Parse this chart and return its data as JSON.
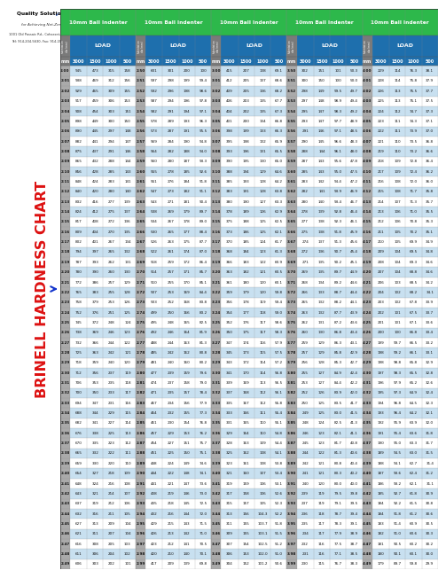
{
  "title": "BRINELL HARDNESS CHART",
  "background_color": "#ffffff",
  "green_bg": "#2db84b",
  "blue_bg": "#1e6fad",
  "gray_col": "#8a8a8a",
  "row_alt1": "#c8e0f0",
  "row_alt2": "#ffffff",
  "ball_headers": [
    "10mm Ball Indenter",
    "10mm Ball Indenter",
    "10mm Ball Indenter",
    "10mm Ball Indenter",
    "10mm Ball Indenter"
  ],
  "load_label": "LOAD",
  "sub_labels": [
    "mm",
    "3000",
    "1500",
    "1000",
    "500"
  ],
  "company_name": "Quality Solutions",
  "company_logo_color": "#003399",
  "company_tagline": "for Achieving Net-Zero",
  "company_address": "1001 Old Passaic Rd., Cohasset, NJ 07838",
  "company_phone": "Tel: 914-204-5630, Fax: 914-206-5383",
  "title_color": "#dd1111",
  "arrow_color": "#1133cc",
  "n_groups": 5,
  "cols_per_group": 5,
  "col_ratios": [
    0.13,
    0.225,
    0.215,
    0.215,
    0.215
  ],
  "data_rows": [
    [
      "2.00",
      "945",
      "473",
      "315",
      "158",
      "2.50",
      "601",
      "301",
      "200",
      "100",
      "3.00",
      "415",
      "207",
      "138",
      "69.1",
      "3.50",
      "302",
      "151",
      "101",
      "50.3",
      "4.00",
      "229",
      "114",
      "76.3",
      "38.1"
    ],
    [
      "2.01",
      "938",
      "469",
      "312",
      "156",
      "2.51",
      "597",
      "298",
      "199",
      "99.4",
      "3.01",
      "412",
      "205",
      "137",
      "68.6",
      "3.51",
      "300",
      "150",
      "100",
      "50.0",
      "4.01",
      "228",
      "114",
      "75.8",
      "37.9"
    ],
    [
      "2.02",
      "929",
      "465",
      "309",
      "155",
      "2.52",
      "592",
      "296",
      "198",
      "98.6",
      "3.02",
      "409",
      "205",
      "136",
      "68.2",
      "3.52",
      "298",
      "149",
      "99.5",
      "49.7",
      "4.02",
      "226",
      "113",
      "75.5",
      "37.7"
    ],
    [
      "2.03",
      "917",
      "459",
      "306",
      "153",
      "2.53",
      "587",
      "294",
      "196",
      "97.8",
      "3.03",
      "406",
      "203",
      "135",
      "67.7",
      "3.53",
      "297",
      "148",
      "98.9",
      "49.4",
      "4.03",
      "225",
      "113",
      "75.1",
      "37.5"
    ],
    [
      "2.04",
      "908",
      "454",
      "303",
      "151",
      "2.54",
      "582",
      "291",
      "194",
      "97.1",
      "3.04",
      "404",
      "202",
      "135",
      "67.3",
      "3.54",
      "295",
      "147",
      "98.3",
      "49.2",
      "4.04",
      "224",
      "112",
      "74.7",
      "37.3"
    ],
    [
      "2.05",
      "898",
      "449",
      "300",
      "150",
      "2.55",
      "578",
      "289",
      "193",
      "96.3",
      "3.05",
      "401",
      "200",
      "134",
      "66.8",
      "3.55",
      "293",
      "147",
      "97.7",
      "48.9",
      "4.05",
      "223",
      "111",
      "74.3",
      "37.1"
    ],
    [
      "2.06",
      "890",
      "445",
      "297",
      "148",
      "2.56",
      "573",
      "287",
      "191",
      "95.5",
      "3.06",
      "398",
      "199",
      "133",
      "66.3",
      "3.56",
      "291",
      "146",
      "97.1",
      "48.5",
      "4.06",
      "222",
      "111",
      "73.9",
      "37.0"
    ],
    [
      "2.07",
      "882",
      "441",
      "294",
      "147",
      "2.57",
      "569",
      "284",
      "190",
      "94.8",
      "3.07",
      "395",
      "198",
      "132",
      "65.9",
      "3.57",
      "290",
      "145",
      "96.6",
      "48.3",
      "4.07",
      "221",
      "110",
      "73.5",
      "36.8"
    ],
    [
      "2.08",
      "875",
      "437",
      "291",
      "146",
      "2.58",
      "564",
      "282",
      "188",
      "94.0",
      "3.08",
      "393",
      "196",
      "131",
      "65.5",
      "3.58",
      "288",
      "144",
      "96.1",
      "48.0",
      "4.08",
      "219",
      "110",
      "73.2",
      "36.6"
    ],
    [
      "2.09",
      "865",
      "432",
      "288",
      "144",
      "2.59",
      "560",
      "280",
      "187",
      "93.3",
      "3.09",
      "390",
      "195",
      "130",
      "65.0",
      "3.59",
      "287",
      "143",
      "95.6",
      "47.8",
      "4.09",
      "218",
      "109",
      "72.8",
      "36.4"
    ],
    [
      "2.10",
      "856",
      "428",
      "285",
      "143",
      "2.60",
      "555",
      "278",
      "185",
      "92.6",
      "3.10",
      "388",
      "194",
      "129",
      "64.6",
      "3.60",
      "285",
      "143",
      "95.0",
      "47.5",
      "4.10",
      "217",
      "109",
      "72.4",
      "36.2"
    ],
    [
      "2.11",
      "848",
      "424",
      "283",
      "141",
      "2.61",
      "551",
      "276",
      "184",
      "91.8",
      "3.11",
      "385",
      "193",
      "128",
      "64.2",
      "3.61",
      "283",
      "142",
      "94.4",
      "47.2",
      "4.11",
      "216",
      "108",
      "72.0",
      "36.0"
    ],
    [
      "2.12",
      "840",
      "420",
      "280",
      "140",
      "2.62",
      "547",
      "273",
      "182",
      "91.1",
      "3.12",
      "383",
      "191",
      "128",
      "63.8",
      "3.62",
      "282",
      "141",
      "93.9",
      "46.9",
      "4.12",
      "215",
      "108",
      "71.7",
      "35.8"
    ],
    [
      "2.13",
      "832",
      "416",
      "277",
      "139",
      "2.63",
      "543",
      "271",
      "181",
      "90.4",
      "3.13",
      "380",
      "190",
      "127",
      "63.3",
      "3.63",
      "280",
      "140",
      "93.4",
      "46.7",
      "4.13",
      "214",
      "107",
      "71.3",
      "35.7"
    ],
    [
      "2.14",
      "824",
      "412",
      "275",
      "137",
      "2.64",
      "538",
      "269",
      "179",
      "89.7",
      "3.14",
      "378",
      "189",
      "126",
      "62.9",
      "3.64",
      "278",
      "139",
      "92.8",
      "46.4",
      "4.14",
      "213",
      "106",
      "71.0",
      "35.5"
    ],
    [
      "2.15",
      "817",
      "408",
      "272",
      "136",
      "2.65",
      "534",
      "267",
      "178",
      "89.0",
      "3.15",
      "375",
      "188",
      "125",
      "62.5",
      "3.65",
      "277",
      "138",
      "92.3",
      "46.1",
      "4.15",
      "212",
      "106",
      "70.8",
      "35.3"
    ],
    [
      "2.16",
      "809",
      "404",
      "270",
      "135",
      "2.66",
      "530",
      "265",
      "177",
      "88.4",
      "3.16",
      "373",
      "186",
      "125",
      "62.1",
      "3.66",
      "275",
      "138",
      "91.8",
      "45.9",
      "4.16",
      "211",
      "105",
      "70.2",
      "35.1"
    ],
    [
      "2.17",
      "802",
      "401",
      "267",
      "134",
      "2.67",
      "526",
      "263",
      "175",
      "87.7",
      "3.17",
      "370",
      "185",
      "124",
      "61.7",
      "3.67",
      "274",
      "137",
      "91.3",
      "45.6",
      "4.17",
      "210",
      "105",
      "69.9",
      "34.9"
    ],
    [
      "2.18",
      "794",
      "397",
      "265",
      "132",
      "2.68",
      "522",
      "261",
      "174",
      "87.0",
      "3.18",
      "368",
      "184",
      "123",
      "61.3",
      "3.68",
      "272",
      "136",
      "90.7",
      "45.4",
      "4.18",
      "209",
      "104",
      "69.5",
      "34.8"
    ],
    [
      "2.19",
      "787",
      "393",
      "262",
      "131",
      "2.69",
      "518",
      "259",
      "172",
      "86.4",
      "3.19",
      "366",
      "183",
      "122",
      "60.9",
      "3.69",
      "271",
      "135",
      "90.2",
      "45.1",
      "4.19",
      "208",
      "104",
      "69.3",
      "34.6"
    ],
    [
      "2.20",
      "780",
      "390",
      "260",
      "130",
      "2.70",
      "514",
      "257",
      "171",
      "85.7",
      "3.20",
      "363",
      "182",
      "121",
      "60.5",
      "3.70",
      "269",
      "135",
      "89.7",
      "44.9",
      "4.20",
      "207",
      "104",
      "68.8",
      "34.6"
    ],
    [
      "2.21",
      "772",
      "386",
      "257",
      "129",
      "2.71",
      "510",
      "255",
      "170",
      "85.1",
      "3.21",
      "361",
      "180",
      "120",
      "60.1",
      "3.71",
      "268",
      "134",
      "89.2",
      "44.6",
      "4.21",
      "206",
      "103",
      "68.5",
      "34.2"
    ],
    [
      "2.22",
      "765",
      "383",
      "255",
      "128",
      "2.72",
      "507",
      "253",
      "169",
      "84.4",
      "3.22",
      "359",
      "179",
      "120",
      "59.8",
      "3.72",
      "266",
      "133",
      "88.7",
      "44.4",
      "4.22",
      "204",
      "102",
      "68.2",
      "34.1"
    ],
    [
      "2.23",
      "758",
      "379",
      "253",
      "126",
      "2.73",
      "503",
      "252",
      "168",
      "83.8",
      "3.23",
      "356",
      "178",
      "119",
      "59.4",
      "3.73",
      "265",
      "132",
      "88.2",
      "44.1",
      "4.23",
      "203",
      "102",
      "67.8",
      "33.9"
    ],
    [
      "2.24",
      "752",
      "376",
      "251",
      "125",
      "2.74",
      "499",
      "250",
      "166",
      "83.2",
      "3.24",
      "354",
      "177",
      "118",
      "59.0",
      "3.74",
      "263",
      "132",
      "87.7",
      "43.9",
      "4.24",
      "202",
      "101",
      "67.5",
      "33.7"
    ],
    [
      "2.25",
      "745",
      "372",
      "248",
      "124",
      "2.75",
      "495",
      "248",
      "165",
      "82.5",
      "3.25",
      "352",
      "176",
      "117",
      "58.6",
      "3.75",
      "262",
      "131",
      "87.2",
      "43.6",
      "4.25",
      "201",
      "101",
      "67.1",
      "33.6"
    ],
    [
      "2.26",
      "738",
      "369",
      "246",
      "123",
      "2.76",
      "492",
      "246",
      "164",
      "81.9",
      "3.26",
      "350",
      "175",
      "117",
      "58.3",
      "3.76",
      "260",
      "130",
      "86.8",
      "43.4",
      "4.26",
      "200",
      "100",
      "66.8",
      "33.4"
    ],
    [
      "2.27",
      "732",
      "366",
      "244",
      "122",
      "2.77",
      "488",
      "244",
      "163",
      "81.3",
      "3.27",
      "347",
      "174",
      "116",
      "57.9",
      "3.77",
      "259",
      "129",
      "86.3",
      "43.1",
      "4.27",
      "199",
      "99.7",
      "66.5",
      "33.2"
    ],
    [
      "2.28",
      "725",
      "363",
      "242",
      "121",
      "2.78",
      "485",
      "242",
      "162",
      "80.8",
      "3.28",
      "345",
      "173",
      "115",
      "57.5",
      "3.78",
      "257",
      "129",
      "85.8",
      "42.9",
      "4.28",
      "198",
      "99.2",
      "66.1",
      "33.1"
    ],
    [
      "2.29",
      "718",
      "359",
      "240",
      "120",
      "2.79",
      "481",
      "240",
      "160",
      "80.2",
      "3.29",
      "343",
      "172",
      "114",
      "57.2",
      "3.79",
      "256",
      "128",
      "85.3",
      "42.7",
      "4.29",
      "198",
      "98.8",
      "65.8",
      "32.9"
    ],
    [
      "2.30",
      "712",
      "356",
      "237",
      "119",
      "2.80",
      "477",
      "239",
      "159",
      "79.6",
      "3.30",
      "341",
      "170",
      "114",
      "56.8",
      "3.80",
      "255",
      "127",
      "84.9",
      "42.4",
      "4.30",
      "197",
      "98.3",
      "65.5",
      "32.8"
    ],
    [
      "2.31",
      "706",
      "353",
      "235",
      "118",
      "2.81",
      "474",
      "237",
      "158",
      "79.0",
      "3.31",
      "339",
      "169",
      "113",
      "56.5",
      "3.81",
      "253",
      "127",
      "84.4",
      "42.2",
      "4.31",
      "196",
      "97.9",
      "65.2",
      "32.6"
    ],
    [
      "2.32",
      "700",
      "350",
      "233",
      "117",
      "2.82",
      "471",
      "235",
      "157",
      "78.4",
      "3.32",
      "337",
      "168",
      "112",
      "56.1",
      "3.82",
      "252",
      "126",
      "83.9",
      "42.0",
      "4.32",
      "195",
      "97.3",
      "64.9",
      "32.4"
    ],
    [
      "2.33",
      "694",
      "347",
      "231",
      "116",
      "2.83",
      "467",
      "234",
      "156",
      "77.9",
      "3.33",
      "335",
      "167",
      "112",
      "55.8",
      "3.83",
      "250",
      "125",
      "83.5",
      "41.7",
      "4.33",
      "194",
      "96.8",
      "64.5",
      "32.3"
    ],
    [
      "2.34",
      "688",
      "344",
      "229",
      "115",
      "2.84",
      "464",
      "232",
      "155",
      "77.3",
      "3.34",
      "333",
      "166",
      "111",
      "55.4",
      "3.84",
      "249",
      "125",
      "83.0",
      "41.5",
      "4.34",
      "193",
      "96.4",
      "64.2",
      "32.1"
    ],
    [
      "2.35",
      "682",
      "341",
      "227",
      "114",
      "2.85",
      "461",
      "230",
      "154",
      "76.8",
      "3.35",
      "331",
      "165",
      "110",
      "55.1",
      "3.85",
      "248",
      "124",
      "82.5",
      "41.3",
      "4.35",
      "192",
      "95.9",
      "63.9",
      "32.0"
    ],
    [
      "2.36",
      "676",
      "338",
      "225",
      "113",
      "2.86",
      "457",
      "229",
      "153",
      "76.2",
      "3.36",
      "329",
      "164",
      "110",
      "54.8",
      "3.86",
      "246",
      "123",
      "82.1",
      "41.1",
      "4.36",
      "191",
      "95.4",
      "63.6",
      "31.8"
    ],
    [
      "2.37",
      "670",
      "335",
      "223",
      "112",
      "2.87",
      "454",
      "227",
      "151",
      "75.7",
      "3.37",
      "328",
      "163",
      "109",
      "54.4",
      "3.87",
      "245",
      "123",
      "81.7",
      "40.8",
      "4.37",
      "190",
      "95.0",
      "63.3",
      "31.7"
    ],
    [
      "2.38",
      "665",
      "332",
      "222",
      "111",
      "2.88",
      "451",
      "225",
      "150",
      "75.1",
      "3.38",
      "325",
      "162",
      "108",
      "54.1",
      "3.88",
      "244",
      "122",
      "81.3",
      "40.6",
      "4.38",
      "189",
      "94.5",
      "63.0",
      "31.5"
    ],
    [
      "2.39",
      "659",
      "330",
      "220",
      "110",
      "2.89",
      "448",
      "224",
      "149",
      "74.6",
      "3.39",
      "323",
      "161",
      "108",
      "53.8",
      "3.89",
      "242",
      "121",
      "80.8",
      "40.4",
      "4.39",
      "188",
      "94.1",
      "62.7",
      "31.4"
    ],
    [
      "2.40",
      "654",
      "327",
      "218",
      "109",
      "2.90",
      "444",
      "222",
      "148",
      "74.1",
      "3.40",
      "321",
      "160",
      "107",
      "53.4",
      "3.90",
      "241",
      "121",
      "80.3",
      "40.2",
      "4.40",
      "187",
      "93.6",
      "62.4",
      "31.2"
    ],
    [
      "2.41",
      "648",
      "324",
      "216",
      "108",
      "2.91",
      "441",
      "221",
      "147",
      "73.6",
      "3.41",
      "319",
      "159",
      "106",
      "53.1",
      "3.91",
      "240",
      "120",
      "80.0",
      "40.0",
      "4.41",
      "186",
      "93.2",
      "62.1",
      "31.1"
    ],
    [
      "2.42",
      "643",
      "321",
      "214",
      "107",
      "2.92",
      "438",
      "219",
      "146",
      "73.0",
      "3.42",
      "317",
      "158",
      "106",
      "52.6",
      "3.92",
      "239",
      "119",
      "79.5",
      "39.8",
      "4.42",
      "185",
      "92.7",
      "61.8",
      "30.9"
    ],
    [
      "2.43",
      "637",
      "319",
      "212",
      "106",
      "2.93",
      "435",
      "218",
      "145",
      "72.5",
      "3.43",
      "315",
      "157",
      "105",
      "52.3",
      "3.93",
      "237",
      "119",
      "79.1",
      "39.5",
      "4.43",
      "184",
      "92.2",
      "61.5",
      "30.8"
    ],
    [
      "2.44",
      "632",
      "316",
      "211",
      "105",
      "2.94",
      "432",
      "216",
      "144",
      "72.0",
      "3.44",
      "313",
      "156",
      "104.3",
      "52.2",
      "3.94",
      "236",
      "118",
      "78.7",
      "39.4",
      "4.44",
      "184",
      "91.8",
      "61.2",
      "30.6"
    ],
    [
      "2.45",
      "627",
      "313",
      "209",
      "104",
      "2.95",
      "429",
      "215",
      "143",
      "71.5",
      "3.45",
      "311",
      "155",
      "103.7",
      "51.8",
      "3.95",
      "235",
      "117",
      "78.3",
      "39.1",
      "4.45",
      "183",
      "91.4",
      "60.9",
      "30.5"
    ],
    [
      "2.46",
      "621",
      "311",
      "207",
      "104",
      "2.96",
      "426",
      "213",
      "142",
      "71.0",
      "3.46",
      "309",
      "155",
      "103.1",
      "51.5",
      "3.96",
      "234",
      "117",
      "77.9",
      "38.9",
      "4.46",
      "182",
      "91.0",
      "60.6",
      "30.3"
    ],
    [
      "2.47",
      "616",
      "308",
      "205",
      "103",
      "2.97",
      "423",
      "212",
      "141",
      "70.5",
      "3.47",
      "307",
      "154",
      "102.5",
      "51.2",
      "3.97",
      "232",
      "116",
      "77.5",
      "38.7",
      "4.47",
      "181",
      "90.5",
      "60.2",
      "30.2"
    ],
    [
      "2.48",
      "611",
      "306",
      "204",
      "102",
      "2.98",
      "420",
      "210",
      "140",
      "70.1",
      "3.48",
      "306",
      "153",
      "102.0",
      "51.0",
      "3.98",
      "231",
      "116",
      "77.1",
      "38.5",
      "4.48",
      "180",
      "90.1",
      "60.1",
      "30.0"
    ],
    [
      "2.49",
      "606",
      "303",
      "202",
      "101",
      "2.99",
      "417",
      "209",
      "139",
      "69.8",
      "3.49",
      "304",
      "152",
      "101.2",
      "50.6",
      "3.99",
      "230",
      "115",
      "76.7",
      "38.3",
      "4.49",
      "179",
      "89.7",
      "59.8",
      "29.9"
    ]
  ]
}
